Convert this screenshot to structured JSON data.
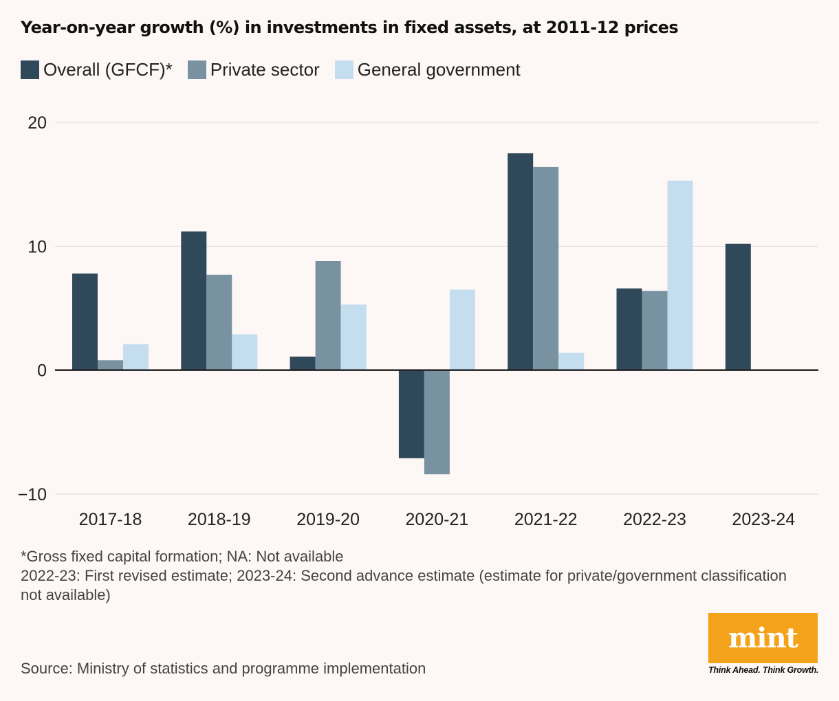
{
  "title": "Year-on-year growth (%) in investments in fixed assets, at 2011-12 prices",
  "legend": [
    {
      "label": "Overall (GFCF)*",
      "color": "#30495a"
    },
    {
      "label": "Private sector",
      "color": "#7892a2"
    },
    {
      "label": "General government",
      "color": "#c4def0"
    }
  ],
  "chart_data": {
    "type": "bar",
    "title": "Year-on-year growth (%) in investments in fixed assets, at 2011-12 prices",
    "xlabel": "",
    "ylabel": "",
    "ylim": [
      -10,
      20
    ],
    "yticks": [
      20,
      10,
      0,
      -10
    ],
    "ytick_labels": [
      "20",
      "10",
      "0",
      "−10"
    ],
    "categories": [
      "2017-18",
      "2018-19",
      "2019-20",
      "2020-21",
      "2021-22",
      "2022-23",
      "2023-24"
    ],
    "series": [
      {
        "name": "Overall (GFCF)*",
        "color": "#30495a",
        "values": [
          7.8,
          11.2,
          1.1,
          -7.1,
          17.5,
          6.6,
          10.2
        ]
      },
      {
        "name": "Private sector",
        "color": "#7892a2",
        "values": [
          0.8,
          7.7,
          8.8,
          -8.4,
          16.4,
          6.4,
          null
        ]
      },
      {
        "name": "General government",
        "color": "#c4def0",
        "values": [
          2.1,
          2.9,
          5.3,
          6.5,
          1.4,
          15.3,
          null
        ]
      }
    ],
    "grid": true
  },
  "notes": [
    "*Gross fixed capital formation; NA: Not available",
    "2022-23: First revised estimate; 2023-24: Second advance estimate (estimate for private/government classification not available)"
  ],
  "source": "Source: Ministry of statistics and programme implementation",
  "logo": {
    "word": "mint",
    "tagline": "Think Ahead. Think Growth.",
    "color": "#f5a21b"
  }
}
